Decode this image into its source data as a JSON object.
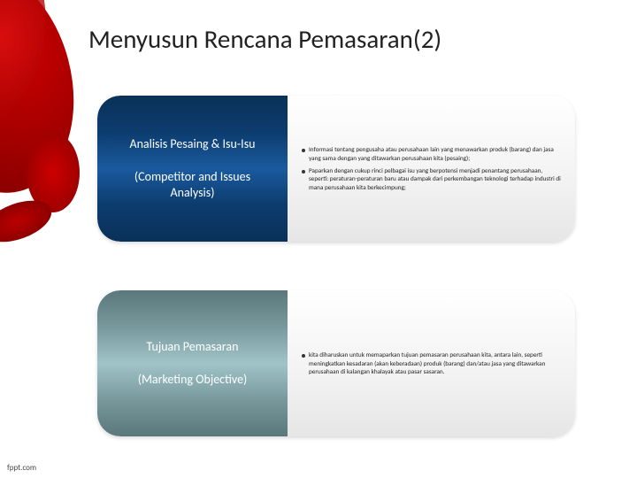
{
  "title": "Menyusun Rencana Pemasaran(2)",
  "blocks": [
    {
      "left_title": "Analisis Pesaing & Isu-Isu",
      "left_sub": "(Competitor and Issues Analysis)",
      "bullets": [
        "Informasi tentang pengusaha atau perusahaan lain yang menawarkan produk (barang) dan jasa yang sama dengan yang ditawarkan perusahaan kita (pesaing);",
        "Paparkan dengan cukup rinci pelbagai isu yang berpotensi menjadi penantang perusahaan, seperti: peraturan-peraturan baru atau dampak dari perkembangan teknologi terhadap industri di mana perusahaan kita berkecimpung;"
      ]
    },
    {
      "left_title": "Tujuan Pemasaran",
      "left_sub": "(Marketing Objective)",
      "bullets": [
        "kita diharuskan untuk memaparkan tujuan pemasaran perusahaan kita, antara lain, seperti meningkatkan kesadaran (akan keberadaan) produk (barang) dan/atau jasa yang ditawarkan perusahaan di kalangan khalayak atau pasar sasaran."
      ]
    }
  ],
  "footer": "fppt.com",
  "colors": {
    "left1_grad": "#0c3c6e",
    "left2_grad": "#78989c",
    "accent_red": "#cc0000"
  }
}
